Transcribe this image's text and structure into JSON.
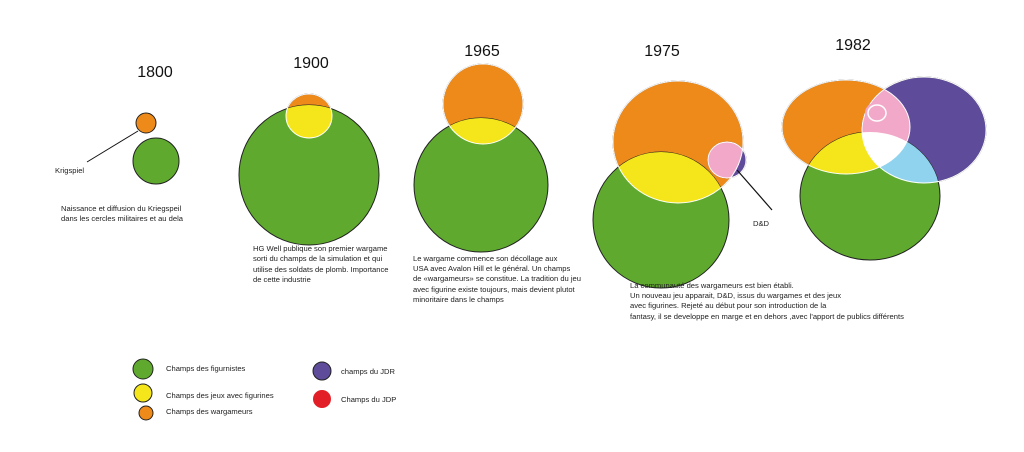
{
  "colors": {
    "figurist_green": "#5faa2e",
    "figurine_games_yellow": "#f4e61a",
    "wargamers_orange": "#ee8a1a",
    "rpg_purple": "#5e4b9a",
    "jdp_red": "#e21f26",
    "overlap_pink": "#f2a9c9",
    "overlap_lightblue": "#8fd3ee"
  },
  "eras": [
    {
      "year": "1800",
      "callout": "Krigspiel",
      "caption": [
        "Naissance et diffusion du Kriegspeil",
        "dans les cercles militaires et au dela"
      ]
    },
    {
      "year": "1900",
      "caption": [
        "HG Well publique son premier wargame",
        "sorti du champs de la simulation et qui",
        "utilise des soldats de plomb. Importance",
        "de cette industrie"
      ]
    },
    {
      "year": "1965",
      "caption": [
        "Le wargame commence son décollage aux",
        "USA avec Avalon Hill et le général. Un champs",
        "de «wargameurs» se constitue. La tradition du jeu",
        "avec figurine existe toujours, mais devient plutot",
        "minoritaire dans le champs"
      ]
    },
    {
      "year": "1975",
      "callout": "D&D",
      "caption": [
        "La communauté des wargameurs est bien établi.",
        "Un nouveau jeu apparait, D&D, issus du wargames et des jeux",
        "avec figurines. Rejeté au début pour son introduction de la",
        "fantasy, il se developpe en marge et en dehors ,avec l'apport de publics différents"
      ]
    },
    {
      "year": "1982"
    }
  ],
  "legend": [
    {
      "label": "Champs des figurnistes",
      "color": "#5faa2e"
    },
    {
      "label": "Champs des jeux avec figurines",
      "color": "#f4e61a"
    },
    {
      "label": "Champs des wargameurs",
      "color": "#ee8a1a"
    },
    {
      "label": "champs du JDR",
      "color": "#5e4b9a"
    },
    {
      "label": "Champs du JDP",
      "color": "#e21f26"
    }
  ]
}
